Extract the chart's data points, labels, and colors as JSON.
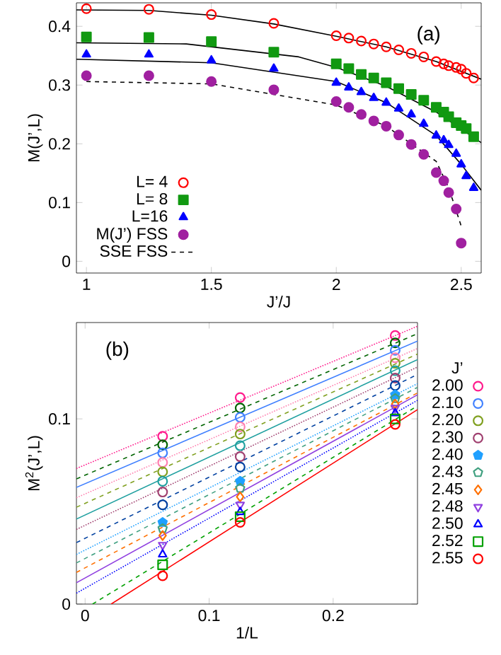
{
  "chart_data": [
    {
      "type": "scatter",
      "xlabel": "J’/J",
      "ylabel": "M(J’,L)",
      "xlim": [
        0.96,
        2.58
      ],
      "ylim": [
        -0.02,
        0.44
      ],
      "xticks": [
        1,
        1.5,
        2,
        2.5
      ],
      "yticks": [
        0,
        0.1,
        0.2,
        0.3,
        0.4
      ],
      "legend": "bottom left",
      "annotations": [
        "(a)"
      ],
      "x": [
        1,
        1.25,
        1.5,
        1.75,
        2,
        2.05,
        2.1,
        2.15,
        2.2,
        2.25,
        2.3,
        2.35,
        2.4,
        2.43,
        2.45,
        2.48,
        2.5,
        2.52,
        2.55
      ],
      "series": [
        {
          "name": "L=  4",
          "color": "#ff0000",
          "marker": "circle",
          "values": [
            0.43,
            0.429,
            0.42,
            0.405,
            0.384,
            0.38,
            0.375,
            0.37,
            0.365,
            0.36,
            0.354,
            0.348,
            0.34,
            0.336,
            0.333,
            0.33,
            0.327,
            0.32,
            0.312
          ]
        },
        {
          "name": "L=  8",
          "color": "#119911",
          "marker": "square",
          "values": [
            0.382,
            0.381,
            0.374,
            0.356,
            0.336,
            0.328,
            0.318,
            0.312,
            0.304,
            0.294,
            0.284,
            0.274,
            0.262,
            0.254,
            0.246,
            0.236,
            0.231,
            0.226,
            0.212
          ]
        },
        {
          "name": "L=16",
          "color": "#0000ff",
          "marker": "triangle",
          "values": [
            0.352,
            0.352,
            0.342,
            0.328,
            0.304,
            0.296,
            0.288,
            0.278,
            0.27,
            0.26,
            0.25,
            0.234,
            0.214,
            0.206,
            0.198,
            0.183,
            0.165,
            0.145,
            0.125
          ]
        },
        {
          "name": "M(J’) FSS",
          "color": "#a020a0",
          "marker": "circle",
          "values": [
            0.316,
            0.316,
            0.306,
            0.292,
            0.272,
            0.262,
            0.25,
            0.239,
            0.23,
            0.215,
            0.199,
            0.182,
            0.151,
            0.137,
            0.117,
            0.089,
            0.031,
            null,
            null
          ]
        },
        {
          "name": "SSE FSS",
          "type": "line",
          "color": "#000000",
          "line_style": "dashed",
          "x": [
            1,
            1.5,
            2,
            2.2,
            2.4,
            2.45,
            2.5
          ],
          "values": [
            0.306,
            0.302,
            0.266,
            0.23,
            0.17,
            0.125,
            0.06
          ]
        },
        {
          "type": "line",
          "color": "#000000",
          "line_style": "solid",
          "x": [
            0.96,
            1.25,
            1.5,
            1.75,
            2,
            2.2,
            2.4,
            2.58
          ],
          "values": [
            0.428,
            0.427,
            0.419,
            0.404,
            0.383,
            0.365,
            0.34,
            0.31
          ]
        },
        {
          "type": "line",
          "color": "#000000",
          "line_style": "solid",
          "x": [
            0.96,
            1.4,
            1.85,
            2,
            2.2,
            2.4,
            2.58
          ],
          "values": [
            0.372,
            0.37,
            0.348,
            0.33,
            0.298,
            0.254,
            0.202
          ]
        },
        {
          "type": "line",
          "color": "#000000",
          "line_style": "solid",
          "x": [
            0.96,
            1.5,
            2,
            2.2,
            2.4,
            2.5,
            2.58
          ],
          "values": [
            0.344,
            0.338,
            0.306,
            0.27,
            0.214,
            0.165,
            0.121
          ]
        }
      ]
    },
    {
      "type": "scatter",
      "xlabel": "1/L",
      "ylabel": "M$^{2}$(J’,L)",
      "xlim": [
        -0.007,
        0.268
      ],
      "ylim": [
        0,
        0.152
      ],
      "xticks": [
        0,
        0.1,
        0.2
      ],
      "yticks": [
        0,
        0.1
      ],
      "legend": "right",
      "legend_title": "J’",
      "annotations": [
        "(b)"
      ],
      "x": [
        0.0625,
        0.125,
        0.25
      ],
      "series": [
        {
          "name": "2.00",
          "color": "#ff1a8c",
          "marker": "circle",
          "values": [
            0.0906,
            0.1115,
            0.145
          ]
        },
        {
          "color": "#006400",
          "marker": "circle",
          "values": [
            0.086,
            0.1059,
            0.141
          ]
        },
        {
          "name": "2.10",
          "color": "#4080ff",
          "marker": "circle",
          "values": [
            0.0816,
            0.1008,
            0.137
          ]
        },
        {
          "color": "#ff80b0",
          "marker": "circle",
          "values": [
            0.0765,
            0.0957,
            0.133
          ]
        },
        {
          "name": "2.20",
          "color": "#80a020",
          "marker": "circle",
          "values": [
            0.0714,
            0.0918,
            0.13
          ]
        },
        {
          "color": "#20a0a0",
          "marker": "circle",
          "values": [
            0.0663,
            0.0855,
            0.126
          ]
        },
        {
          "name": "2.30",
          "color": "#a04070",
          "marker": "circle",
          "values": [
            0.0605,
            0.0796,
            0.122
          ]
        },
        {
          "color": "#0040a0",
          "marker": "circle",
          "values": [
            0.0536,
            0.074,
            0.118
          ]
        },
        {
          "name": "2.40",
          "color": "#20a0ff",
          "values": [
            0.0441,
            0.0663,
            0.113
          ]
        },
        {
          "name": "2.43",
          "color": "#40a080",
          "values": [
            0.0408,
            0.0625,
            0.111
          ]
        },
        {
          "name": "2.45",
          "color": "#ff7000",
          "marker": "diamond",
          "values": [
            0.037,
            0.0579,
            0.108
          ]
        },
        {
          "name": "2.48",
          "color": "#9040e0",
          "marker": "triangle_down",
          "values": [
            0.0319,
            0.0536,
            0.106
          ]
        },
        {
          "name": "2.50",
          "color": "#0000ff",
          "marker": "triangle",
          "values": [
            0.0268,
            0.0497,
            0.103
          ]
        },
        {
          "name": "2.52",
          "color": "#00a000",
          "marker": "square",
          "values": [
            0.0212,
            0.0472,
            0.1
          ]
        },
        {
          "name": "2.55",
          "color": "#ff0000",
          "marker": "circle",
          "values": [
            0.0153,
            0.0441,
            0.097
          ]
        },
        {
          "type": "line",
          "color": "#ff1a8c",
          "line_style": "dotted",
          "x": [
            -0.007,
            0.268
          ],
          "values": [
            0.0732,
            0.15
          ]
        },
        {
          "type": "line",
          "color": "#006400",
          "line_style": "dashed",
          "x": [
            -0.007,
            0.268
          ],
          "values": [
            0.0676,
            0.146
          ]
        },
        {
          "type": "line",
          "color": "#4080ff",
          "line_style": "solid",
          "x": [
            -0.007,
            0.268
          ],
          "values": [
            0.063,
            0.142
          ]
        },
        {
          "type": "line",
          "color": "#ff80b0",
          "line_style": "dotted",
          "x": [
            -0.007,
            0.268
          ],
          "values": [
            0.0574,
            0.138
          ]
        },
        {
          "type": "line",
          "color": "#80a020",
          "line_style": "dashed",
          "x": [
            -0.007,
            0.268
          ],
          "values": [
            0.0523,
            0.135
          ]
        },
        {
          "type": "line",
          "color": "#20a0a0",
          "line_style": "solid",
          "x": [
            -0.007,
            0.268
          ],
          "values": [
            0.0459,
            0.132
          ]
        },
        {
          "type": "line",
          "color": "#a04070",
          "line_style": "dotted",
          "x": [
            -0.007,
            0.268
          ],
          "values": [
            0.0403,
            0.128
          ]
        },
        {
          "type": "line",
          "color": "#0040a0",
          "line_style": "dashed",
          "x": [
            -0.007,
            0.268
          ],
          "values": [
            0.0332,
            0.124
          ]
        },
        {
          "type": "line",
          "color": "#20a0ff",
          "line_style": "dotted",
          "x": [
            -0.007,
            0.268
          ],
          "values": [
            0.0268,
            0.119
          ]
        },
        {
          "type": "line",
          "color": "#40a080",
          "line_style": "dashed",
          "x": [
            -0.007,
            0.268
          ],
          "values": [
            0.0222,
            0.117
          ]
        },
        {
          "type": "line",
          "color": "#ff7000",
          "line_style": "dashed",
          "x": [
            -0.007,
            0.268
          ],
          "values": [
            0.0171,
            0.114
          ]
        },
        {
          "type": "line",
          "color": "#9040e0",
          "line_style": "solid",
          "x": [
            -0.007,
            0.268
          ],
          "values": [
            0.0115,
            0.113
          ]
        },
        {
          "type": "line",
          "color": "#0000ff",
          "line_style": "dotted",
          "x": [
            -0.007,
            0.268
          ],
          "values": [
            0.0059,
            0.11
          ]
        },
        {
          "type": "line",
          "color": "#00a000",
          "line_style": "dashed",
          "x": [
            0.006,
            0.268
          ],
          "values": [
            0,
            0.107
          ]
        },
        {
          "type": "line",
          "color": "#ff0000",
          "line_style": "solid",
          "x": [
            0.021,
            0.268
          ],
          "values": [
            0,
            0.105
          ]
        }
      ]
    }
  ]
}
